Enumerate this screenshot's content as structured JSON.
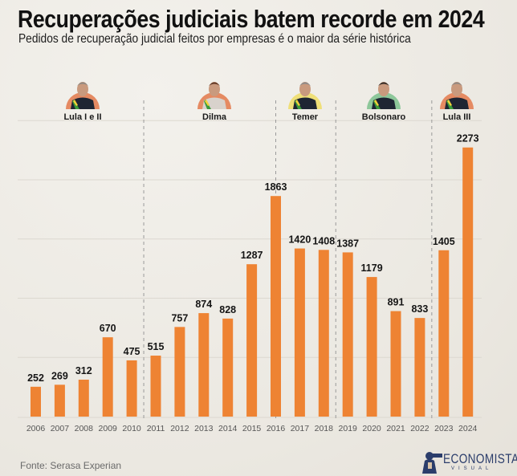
{
  "header": {
    "title": "Recuperações judiciais batem recorde em 2024",
    "subtitle": "Pedidos de recuperação judicial feitos por empresas é o maior da série histórica"
  },
  "footer": {
    "source": "Fonte: Serasa Experian",
    "logo_main": "ECONOMISTA",
    "logo_sub": "VISUAL"
  },
  "colors": {
    "bar": "#ee8333",
    "text": "#151515",
    "gridline": "#dcd8d0",
    "separator": "#9a9a9a",
    "lula_badge": "#e58a62",
    "dilma_badge": "#e58a62",
    "temer_badge": "#efdf78",
    "bolsonaro_badge": "#8dc79a",
    "lula3_badge": "#e58a62"
  },
  "chart_data": {
    "type": "bar",
    "title": "Recuperações judiciais batem recorde em 2024",
    "subtitle": "Pedidos de recuperação judicial feitos por empresas é o maior da série histórica",
    "xlabel": "",
    "ylabel": "",
    "ylim": [
      0,
      2500
    ],
    "grid": true,
    "gridline_step": 500,
    "categories": [
      "2006",
      "2007",
      "2008",
      "2009",
      "2010",
      "2011",
      "2012",
      "2013",
      "2014",
      "2015",
      "2016",
      "2017",
      "2018",
      "2019",
      "2020",
      "2021",
      "2022",
      "2023",
      "2024"
    ],
    "values": [
      252,
      269,
      312,
      670,
      475,
      515,
      757,
      874,
      828,
      1287,
      1863,
      1420,
      1408,
      1387,
      1179,
      891,
      833,
      1405,
      2273
    ],
    "data_labels": [
      "252",
      "269",
      "312",
      "670",
      "475",
      "515",
      "757",
      "874",
      "828",
      "1287",
      "1863",
      "1420",
      "1408",
      "1387",
      "1179",
      "891",
      "833",
      "1405",
      "2273"
    ],
    "periods": [
      {
        "name": "Lula I e II",
        "start": "2006",
        "end": "2010",
        "badge": "lula_badge",
        "icon": "lula-portrait-icon"
      },
      {
        "name": "Dilma",
        "start": "2011",
        "end": "2016",
        "badge": "dilma_badge",
        "icon": "dilma-portrait-icon"
      },
      {
        "name": "Temer",
        "start": "2016",
        "end": "2018",
        "badge": "temer_badge",
        "icon": "temer-portrait-icon"
      },
      {
        "name": "Bolsonaro",
        "start": "2019",
        "end": "2022",
        "badge": "bolsonaro_badge",
        "icon": "bolsonaro-portrait-icon"
      },
      {
        "name": "Lula III",
        "start": "2023",
        "end": "2024",
        "badge": "lula3_badge",
        "icon": "lula-iii-portrait-icon"
      }
    ],
    "source": "Serasa Experian"
  }
}
